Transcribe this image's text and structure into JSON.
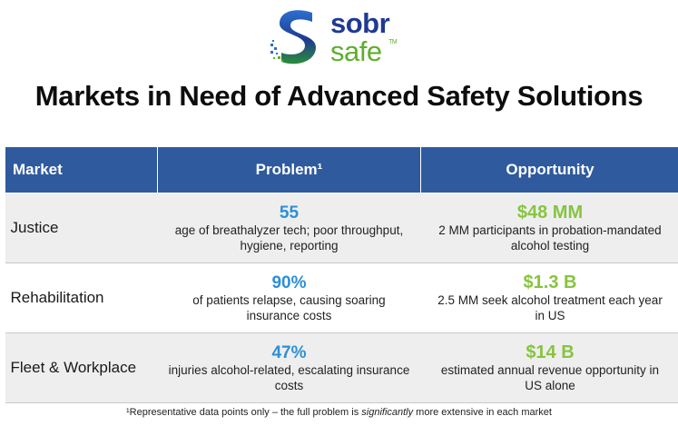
{
  "logo": {
    "word1": "sobr",
    "word2": "safe",
    "tm": "TM"
  },
  "title": "Markets in Need of Advanced Safety Solutions",
  "table": {
    "headers": [
      "Market",
      "Problem¹",
      "Opportunity"
    ],
    "rows": [
      {
        "market": "Justice",
        "problem_stat": "55",
        "problem_text": "age of breathalyzer tech; poor throughput, hygiene, reporting",
        "opportunity_stat": "$48 MM",
        "opportunity_text": "2 MM participants in probation-mandated alcohol testing"
      },
      {
        "market": "Rehabilitation",
        "problem_stat": "90%",
        "problem_text": "of patients relapse, causing soaring insurance costs",
        "opportunity_stat": "$1.3 B",
        "opportunity_text": "2.5 MM seek alcohol treatment each year in US"
      },
      {
        "market": "Fleet & Workplace",
        "problem_stat": "47%",
        "problem_text": "injuries alcohol-related, escalating insurance costs",
        "opportunity_stat": "$14 B",
        "opportunity_text": "estimated annual revenue opportunity in US alone"
      }
    ]
  },
  "footnote": {
    "before": "¹Representative data points only – the full problem is ",
    "emphasis": "significantly",
    "after": " more extensive in each market"
  },
  "colors": {
    "header_bg": "#2f5a9e",
    "stat_blue": "#2d8fd6",
    "stat_green": "#86c43f",
    "logo_blue": "#1f3a93",
    "logo_green": "#5fae2e"
  }
}
